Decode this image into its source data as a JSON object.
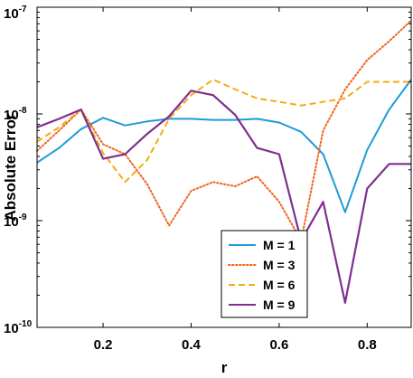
{
  "chart_data": {
    "type": "line",
    "title": "",
    "xlabel": "r",
    "ylabel": "Absolute Error",
    "xlim": [
      0.05,
      0.9
    ],
    "ylim": [
      1e-10,
      1e-07
    ],
    "yscale": "log",
    "xticks": [
      "0.2",
      "0.4",
      "0.6",
      "0.8"
    ],
    "xtick_values": [
      0.2,
      0.4,
      0.6,
      0.8
    ],
    "yticks": [
      {
        "base": "10",
        "exp": "-10",
        "value": 1e-10
      },
      {
        "base": "10",
        "exp": "-9",
        "value": 1e-09
      },
      {
        "base": "10",
        "exp": "-8",
        "value": 1e-08
      },
      {
        "base": "10",
        "exp": "-7",
        "value": 1e-07
      }
    ],
    "legend_position": "bottom-right",
    "grid": false,
    "x": [
      0.05,
      0.1,
      0.15,
      0.2,
      0.25,
      0.3,
      0.35,
      0.4,
      0.45,
      0.5,
      0.55,
      0.6,
      0.65,
      0.7,
      0.75,
      0.8,
      0.85,
      0.9
    ],
    "series": [
      {
        "name": "M = 1",
        "color": "#1f9bd7",
        "style": "solid",
        "values": [
          3.5e-09,
          4.8e-09,
          7.2e-09,
          9.2e-09,
          7.8e-09,
          8.5e-09,
          9e-09,
          9e-09,
          8.8e-09,
          8.8e-09,
          9e-09,
          8.3e-09,
          6.8e-09,
          4.2e-09,
          1.2e-09,
          4.6e-09,
          1.1e-08,
          2.1e-08
        ]
      },
      {
        "name": "M = 3",
        "color": "#f0641e",
        "style": "dotted",
        "values": [
          4.5e-09,
          7e-09,
          1.1e-08,
          5.2e-09,
          4.2e-09,
          2.2e-09,
          9e-10,
          1.9e-09,
          2.3e-09,
          2.1e-09,
          2.6e-09,
          1.5e-09,
          6.5e-10,
          7e-09,
          1.7e-08,
          3.2e-08,
          4.8e-08,
          7.5e-08
        ]
      },
      {
        "name": "M = 6",
        "color": "#f5aa12",
        "style": "dashed",
        "values": [
          5.5e-09,
          7.5e-09,
          1.1e-08,
          4.3e-09,
          2.3e-09,
          3.7e-09,
          9e-09,
          1.5e-08,
          2.1e-08,
          1.7e-08,
          1.4e-08,
          1.3e-08,
          1.2e-08,
          1.3e-08,
          1.4e-08,
          2e-08,
          2e-08,
          2e-08
        ]
      },
      {
        "name": "M = 9",
        "color": "#7e2f8e",
        "style": "solid",
        "values": [
          7.5e-09,
          9e-09,
          1.1e-08,
          3.8e-09,
          4.2e-09,
          6.5e-09,
          9.5e-09,
          1.65e-08,
          1.5e-08,
          9.8e-09,
          4.8e-09,
          4.2e-09,
          6.5e-10,
          1.5e-09,
          1.7e-10,
          2e-09,
          3.4e-09,
          3.4e-09
        ]
      }
    ]
  }
}
